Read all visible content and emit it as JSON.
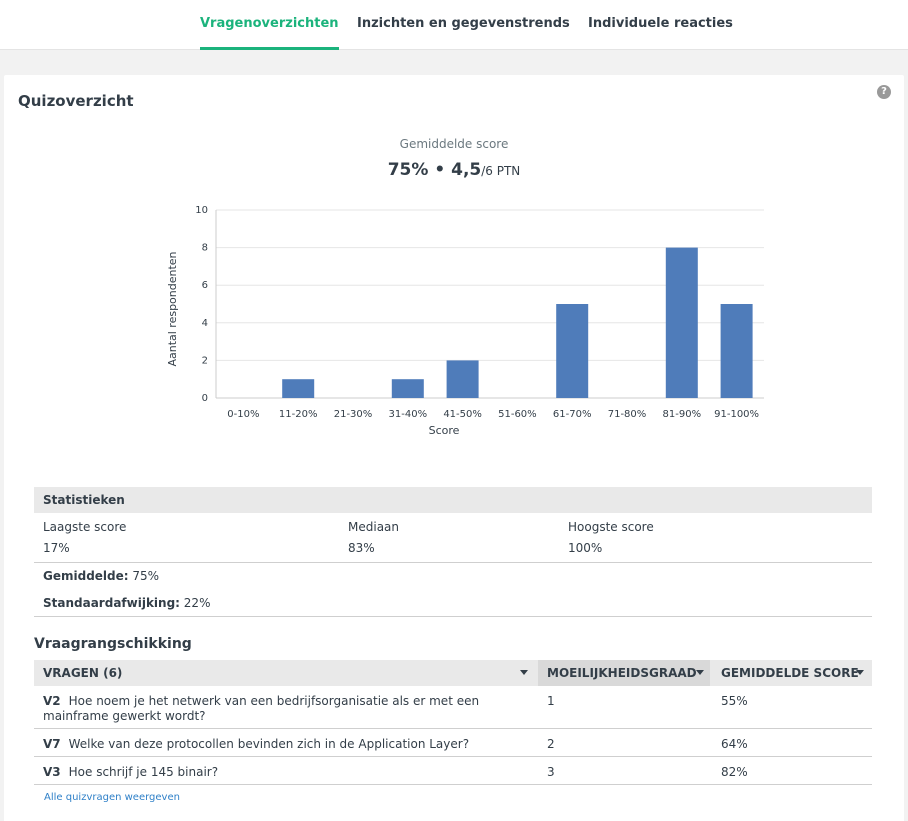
{
  "tabs": [
    {
      "label": "Vragenoverzichten",
      "active": true
    },
    {
      "label": "Inzichten en gegevenstrends",
      "active": false
    },
    {
      "label": "Individuele reacties",
      "active": false
    }
  ],
  "quiz": {
    "title": "Quizoverzicht",
    "help_icon": "question-icon",
    "score_label": "Gemiddelde score",
    "score_percent": "75%",
    "score_separator": "•",
    "score_points": "4,5",
    "score_total": "/6 PTN"
  },
  "chart_data": {
    "type": "bar",
    "categories": [
      "0-10%",
      "11-20%",
      "21-30%",
      "31-40%",
      "41-50%",
      "51-60%",
      "61-70%",
      "71-80%",
      "81-90%",
      "91-100%"
    ],
    "values": [
      0,
      1,
      0,
      1,
      2,
      0,
      5,
      0,
      8,
      5
    ],
    "xlabel": "Score",
    "ylabel": "Aantal respondenten",
    "ylim": [
      0,
      10
    ],
    "yticks": [
      0,
      2,
      4,
      6,
      8,
      10
    ],
    "grid": true,
    "bar_color": "#4f7cba"
  },
  "stats": {
    "header": "Statistieken",
    "lowest_label": "Laagste score",
    "lowest_value": "17%",
    "median_label": "Mediaan",
    "median_value": "83%",
    "highest_label": "Hoogste score",
    "highest_value": "100%",
    "mean_label": "Gemiddelde:",
    "mean_value": "75%",
    "stddev_label": "Standaardafwijking:",
    "stddev_value": "22%"
  },
  "ranking": {
    "title": "Vraagrangschikking",
    "col_questions": "VRAGEN (6)",
    "col_difficulty": "MOEILIJKHEIDSGRAAD",
    "col_avg": "GEMIDDELDE SCORE",
    "rows": [
      {
        "id": "V2",
        "text": "Hoe noem je het netwerk van een bedrijfsorganisatie als er met een mainframe gewerkt wordt?",
        "difficulty": "1",
        "avg": "55%"
      },
      {
        "id": "V7",
        "text": "Welke van deze protocollen bevinden zich in de Application Layer?",
        "difficulty": "2",
        "avg": "64%"
      },
      {
        "id": "V3",
        "text": "Hoe schrijf je 145 binair?",
        "difficulty": "3",
        "avg": "82%"
      }
    ],
    "all_link": "Alle quizvragen weergeven"
  },
  "colors": {
    "accent": "#1bb37c",
    "link": "#2f80c8"
  }
}
